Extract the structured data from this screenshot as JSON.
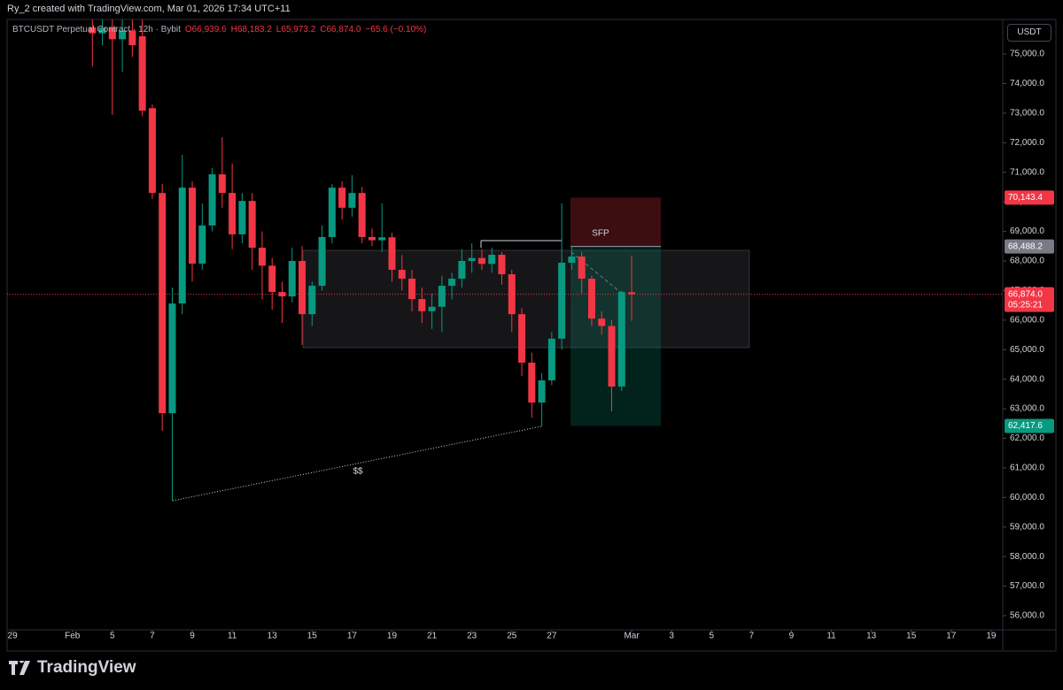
{
  "header": {
    "attribution": "Ry_2 created with TradingView.com, Mar 01, 2026 17:34 UTC+11"
  },
  "chart_data": {
    "type": "candlestick",
    "title": "BTCUSDT Perpetual Contract · 12h · Bybit",
    "legend_values": [
      {
        "value": 66939.6,
        "label": "O66,939.6"
      },
      {
        "value": 68183.2,
        "label": "H68,183.2"
      },
      {
        "value": 65973.2,
        "label": "L65,973.2"
      },
      {
        "value": 66874,
        "label": "C66,874.0"
      },
      {
        "value": -65.6,
        "label": "−65.6 (−0.10%)"
      }
    ],
    "currency": "USDT",
    "up_color": "#089981",
    "down_color": "#f23645",
    "x": [
      4,
      4.5,
      5,
      5.5,
      6,
      6.5,
      7,
      7.5,
      8,
      8.5,
      9,
      9.5,
      10,
      10.5,
      11,
      11.5,
      12,
      12.5,
      13,
      13.5,
      14,
      14.5,
      15,
      15.5,
      16,
      16.5,
      17,
      17.5,
      18,
      18.5,
      19,
      19.5,
      20,
      20.5,
      21,
      21.5,
      22,
      22.5,
      23,
      23.5,
      24,
      24.5,
      25,
      25.5,
      26,
      26.5,
      27,
      27.5,
      28,
      28.5,
      29,
      29.5,
      30,
      30.5,
      31
    ],
    "open": [
      75900,
      75700,
      75900,
      75500,
      75800,
      75600,
      73170,
      70300,
      62850,
      66560,
      70480,
      67910,
      69200,
      70930,
      70300,
      68900,
      70030,
      68450,
      67840,
      66950,
      66800,
      68000,
      66200,
      67160,
      68810,
      70480,
      69800,
      70300,
      68810,
      68700,
      68800,
      67700,
      67400,
      66710,
      66300,
      66450,
      67160,
      67400,
      68000,
      68100,
      67900,
      68210,
      67550,
      66200,
      64560,
      63210,
      63960,
      65370,
      67940,
      68150,
      67400,
      66050,
      65800,
      63750,
      66939.6
    ],
    "high": [
      76200,
      76200,
      76200,
      76200,
      76200,
      76200,
      73300,
      70600,
      67100,
      71590,
      70700,
      69950,
      71140,
      72190,
      71300,
      70300,
      70300,
      69000,
      68100,
      67300,
      68450,
      68500,
      67300,
      69200,
      70600,
      70700,
      70900,
      70500,
      69100,
      69950,
      68950,
      68200,
      67700,
      67100,
      66900,
      67500,
      67600,
      68400,
      68600,
      68400,
      68450,
      68300,
      67700,
      66400,
      64900,
      64200,
      65600,
      69950,
      68500,
      68300,
      67500,
      66300,
      66000,
      67000,
      68183.2
    ],
    "low": [
      74580,
      75300,
      72940,
      74400,
      74900,
      72900,
      70100,
      62250,
      59890,
      66200,
      67300,
      67700,
      69000,
      69800,
      68400,
      68600,
      67700,
      66700,
      66350,
      65900,
      66600,
      65160,
      65800,
      67000,
      68600,
      69400,
      69500,
      68600,
      68500,
      68300,
      67300,
      67000,
      66300,
      65900,
      65700,
      65600,
      66700,
      67100,
      67600,
      67700,
      67600,
      67200,
      65600,
      64110,
      62700,
      62400,
      63800,
      65000,
      67700,
      66900,
      65800,
      65500,
      62910,
      63600,
      65973.2
    ],
    "close": [
      75700,
      75900,
      75500,
      75800,
      75300,
      73085,
      70300,
      62850,
      66560,
      70480,
      67910,
      69200,
      70930,
      70300,
      68900,
      70030,
      68450,
      67840,
      66950,
      66800,
      68000,
      66200,
      67160,
      68810,
      70480,
      69800,
      70300,
      68810,
      68700,
      68800,
      67700,
      67400,
      66710,
      66300,
      66450,
      67160,
      67400,
      68000,
      68100,
      67900,
      68210,
      67550,
      66200,
      64560,
      63210,
      63960,
      65370,
      67940,
      68150,
      67400,
      66050,
      65800,
      63750,
      66950,
      66874
    ],
    "xlim": [
      -0.27,
      49.58
    ],
    "ylim": [
      55520,
      76170
    ],
    "xticks": [
      {
        "value": 0,
        "label": "29"
      },
      {
        "value": 3,
        "label": "Feb"
      },
      5,
      7,
      9,
      11,
      13,
      15,
      17,
      19,
      21,
      23,
      25,
      27,
      {
        "value": 31,
        "label": "Mar"
      },
      {
        "value": 33,
        "label": "3"
      },
      {
        "value": 35,
        "label": "5"
      },
      {
        "value": 37,
        "label": "7"
      },
      {
        "value": 39,
        "label": "9"
      },
      {
        "value": 41,
        "label": "11"
      },
      {
        "value": 43,
        "label": "13"
      },
      {
        "value": 45,
        "label": "15"
      },
      {
        "value": 47,
        "label": "17"
      },
      {
        "value": 49,
        "label": "19"
      }
    ],
    "yticks": [
      {
        "value": 56000,
        "label": "56,000.0"
      },
      {
        "value": 57000,
        "label": "57,000.0"
      },
      {
        "value": 58000,
        "label": "58,000.0"
      },
      {
        "value": 59000,
        "label": "59,000.0"
      },
      {
        "value": 60000,
        "label": "60,000.0"
      },
      {
        "value": 61000,
        "label": "61,000.0"
      },
      {
        "value": 62000,
        "label": "62,000.0"
      },
      {
        "value": 63000,
        "label": "63,000.0"
      },
      {
        "value": 64000,
        "label": "64,000.0"
      },
      {
        "value": 65000,
        "label": "65,000.0"
      },
      {
        "value": 66000,
        "label": "66,000.0"
      },
      {
        "value": 67000,
        "label": "67,000.0"
      },
      {
        "value": 68000,
        "label": "68,000.0"
      },
      {
        "value": 69000,
        "label": "69,000.0"
      },
      {
        "value": 70000,
        "label": "70,000.0"
      },
      {
        "value": 71000,
        "label": "71,000.0"
      },
      {
        "value": 72000,
        "label": "72,000.0"
      },
      {
        "value": 73000,
        "label": "73,000.0"
      },
      {
        "value": 74000,
        "label": "74,000.0"
      },
      {
        "value": 75000,
        "label": "75,000.0"
      }
    ],
    "price_labels": [
      {
        "value": 70143.4,
        "label": "70,143.4",
        "color": "#f23645"
      },
      {
        "value": 68488.2,
        "label": "68,488.2",
        "color": "#787b86"
      },
      {
        "value": 66874,
        "label": "66,874.0",
        "color": "#f23645"
      },
      {
        "value": 62417.6,
        "label": "62,417.6",
        "color": "#089981"
      }
    ],
    "countdown": "05:25:21",
    "annotations": [
      "SFP",
      "$$"
    ]
  },
  "footer": {
    "brand": "TradingView"
  }
}
